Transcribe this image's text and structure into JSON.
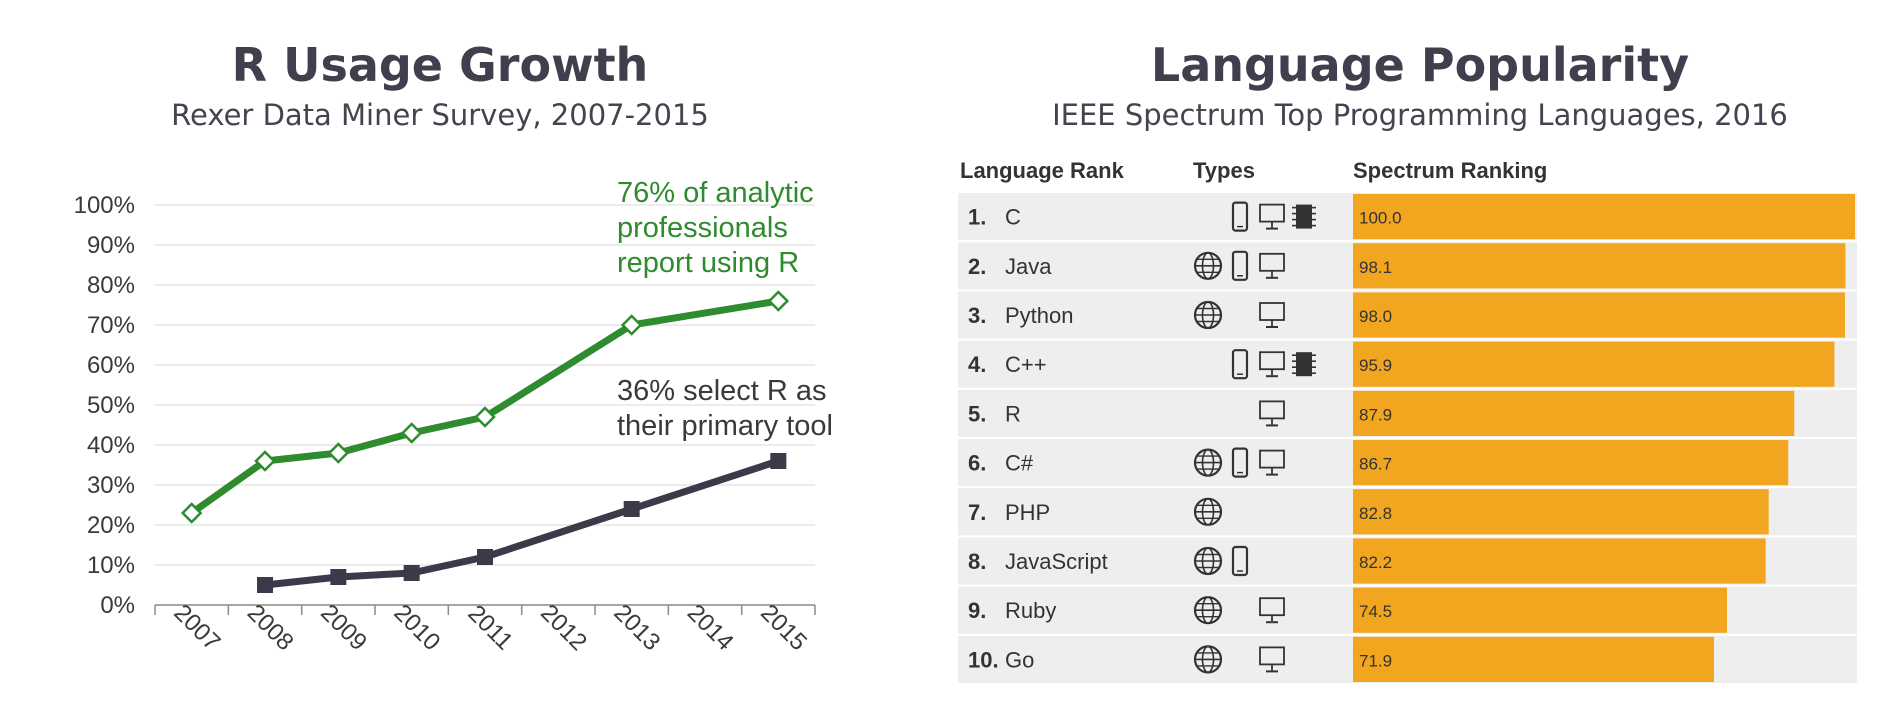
{
  "colors": {
    "all_line": "#2e8b2e",
    "primary_line": "#3a3a4a",
    "bar": "#f2a51f",
    "row_alt": "#eeeeee"
  },
  "left_panel": {
    "title": "R Usage Growth",
    "subtitle": "Rexer Data Miner Survey, 2007-2015",
    "annotation_all": [
      "76% of analytic",
      "professionals",
      "report using R"
    ],
    "annotation_primary": [
      "36% select R as",
      "their primary tool"
    ]
  },
  "right_panel": {
    "title": "Language Popularity",
    "subtitle": "IEEE Spectrum Top Programming Languages, 2016",
    "col_rank": "Language Rank",
    "col_types": "Types",
    "col_ranking": "Spectrum Ranking"
  },
  "chart_data": [
    {
      "type": "line",
      "x": [
        "2007",
        "2008",
        "2009",
        "2010",
        "2011",
        "2012",
        "2013",
        "2014",
        "2015"
      ],
      "yticks": [
        "0%",
        "10%",
        "20%",
        "30%",
        "40%",
        "50%",
        "60%",
        "70%",
        "80%",
        "90%",
        "100%"
      ],
      "ylim": [
        0,
        100
      ],
      "grid": true,
      "series": [
        {
          "key": "all",
          "values": [
            23,
            36,
            38,
            43,
            47,
            null,
            70,
            null,
            76
          ]
        },
        {
          "key": "primary",
          "values": [
            null,
            5,
            7,
            8,
            12,
            null,
            24,
            null,
            36
          ]
        }
      ]
    },
    {
      "type": "bar",
      "orientation": "horizontal",
      "xlim": [
        0,
        100
      ],
      "categories": [
        {
          "rank": "1.",
          "name": "C",
          "value": "100.0",
          "types": [
            "mobile-icon",
            "desktop-icon",
            "embedded-icon"
          ]
        },
        {
          "rank": "2.",
          "name": "Java",
          "value": "98.1",
          "types": [
            "web-icon",
            "mobile-icon",
            "desktop-icon"
          ]
        },
        {
          "rank": "3.",
          "name": "Python",
          "value": "98.0",
          "types": [
            "web-icon",
            "desktop-icon"
          ]
        },
        {
          "rank": "4.",
          "name": "C++",
          "value": "95.9",
          "types": [
            "mobile-icon",
            "desktop-icon",
            "embedded-icon"
          ]
        },
        {
          "rank": "5.",
          "name": "R",
          "value": "87.9",
          "types": [
            "desktop-icon"
          ]
        },
        {
          "rank": "6.",
          "name": "C#",
          "value": "86.7",
          "types": [
            "web-icon",
            "mobile-icon",
            "desktop-icon"
          ]
        },
        {
          "rank": "7.",
          "name": "PHP",
          "value": "82.8",
          "types": [
            "web-icon"
          ]
        },
        {
          "rank": "8.",
          "name": "JavaScript",
          "value": "82.2",
          "types": [
            "web-icon",
            "mobile-icon"
          ]
        },
        {
          "rank": "9.",
          "name": "Ruby",
          "value": "74.5",
          "types": [
            "web-icon",
            "desktop-icon"
          ]
        },
        {
          "rank": "10.",
          "name": "Go",
          "value": "71.9",
          "types": [
            "web-icon",
            "desktop-icon"
          ]
        }
      ]
    }
  ]
}
